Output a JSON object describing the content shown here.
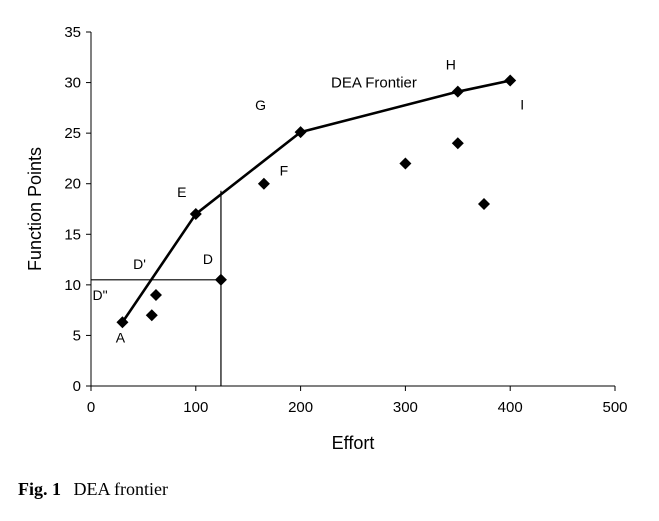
{
  "chart_data": {
    "type": "scatter",
    "xlabel": "Effort",
    "ylabel": "Function Points",
    "xlim": [
      0,
      500
    ],
    "ylim": [
      0,
      35
    ],
    "xticks": [
      0,
      100,
      200,
      300,
      400,
      500
    ],
    "yticks": [
      0,
      5,
      10,
      15,
      20,
      25,
      30,
      35
    ],
    "grid": false,
    "colors": {
      "marker": "#000000",
      "line": "#000000"
    },
    "points": [
      {
        "label": "A",
        "x": 30,
        "y": 6.3
      },
      {
        "label": "",
        "x": 58,
        "y": 7
      },
      {
        "label": "",
        "x": 62,
        "y": 9
      },
      {
        "label": "E",
        "x": 100,
        "y": 17
      },
      {
        "label": "D",
        "x": 124,
        "y": 10.5
      },
      {
        "label": "F",
        "x": 165,
        "y": 20
      },
      {
        "label": "G",
        "x": 200,
        "y": 25.1
      },
      {
        "label": "",
        "x": 300,
        "y": 22
      },
      {
        "label": "H",
        "x": 350,
        "y": 29.1
      },
      {
        "label": "",
        "x": 350,
        "y": 24
      },
      {
        "label": "",
        "x": 375,
        "y": 18
      },
      {
        "label": "I",
        "x": 400,
        "y": 30.2
      }
    ],
    "frontier": {
      "name": "DEA Frontier",
      "x": [
        30,
        100,
        200,
        350,
        400
      ],
      "y": [
        6.3,
        17,
        25.1,
        29.1,
        30.2
      ]
    },
    "reference_lines": [
      {
        "x": [
          124,
          124
        ],
        "y": [
          0,
          19.3
        ]
      },
      {
        "x": [
          0,
          124
        ],
        "y": [
          10.5,
          10.5
        ]
      }
    ],
    "annotations": [
      {
        "text": "D'",
        "x": 52,
        "y": 10.5
      },
      {
        "text": "D\"",
        "x": 0,
        "y": 10.5
      }
    ]
  },
  "caption": {
    "label": "Fig. 1",
    "text": "DEA frontier"
  }
}
